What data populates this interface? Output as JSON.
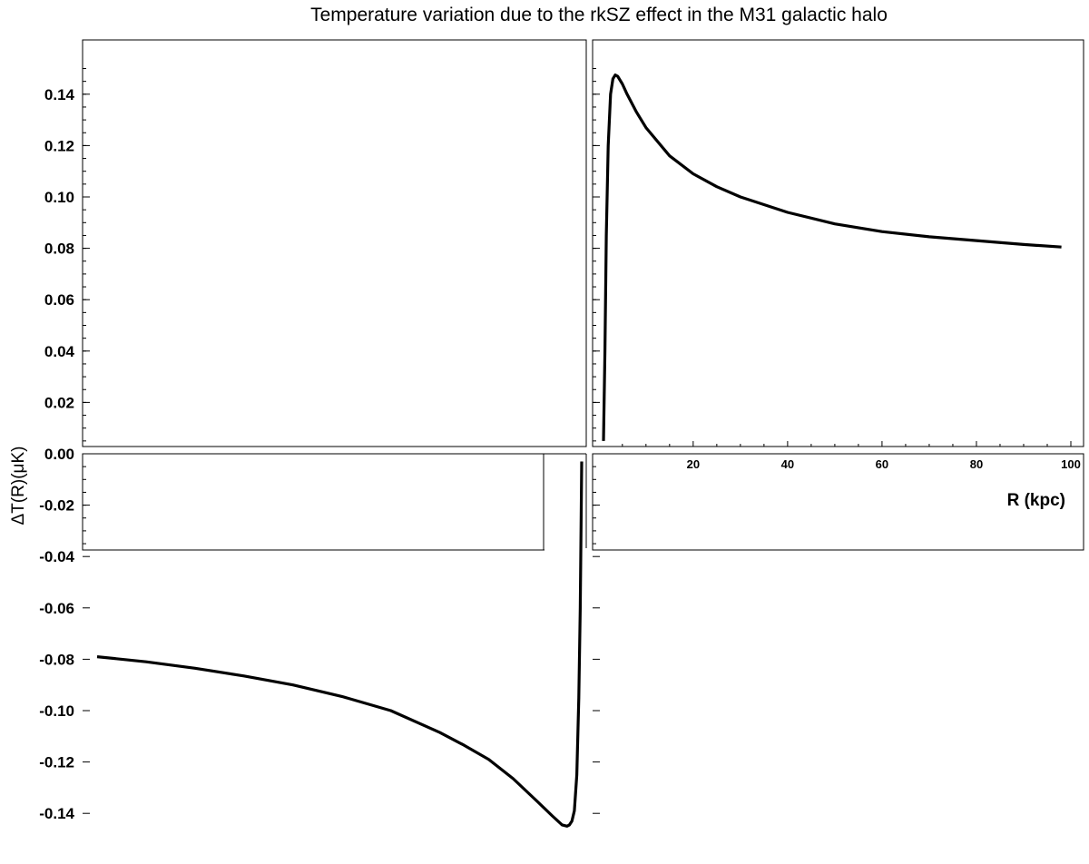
{
  "chart_data": {
    "type": "line",
    "title": "Temperature variation due to the rkSZ effect in the M31 galactic halo",
    "xlabel": "R (kpc)",
    "ylabel": "ΔT(R)(μK)",
    "grid": false,
    "xlim": [
      0,
      100
    ],
    "x_ticks": [
      20,
      40,
      60,
      80,
      100
    ],
    "y_ticks_upper": [
      "0.14",
      "0.12",
      "0.10",
      "0.08",
      "0.06",
      "0.04",
      "0.02",
      "0.00"
    ],
    "y_ticks_lower": [
      "-0.02",
      "-0.04",
      "-0.06",
      "-0.08",
      "-0.10",
      "-0.12",
      "-0.14"
    ],
    "panels": [
      {
        "name": "upper-right",
        "ylim": [
          0,
          0.15
        ],
        "x": [
          1,
          1.3,
          1.6,
          2,
          2.5,
          3,
          3.5,
          4,
          5,
          6,
          8,
          10,
          15,
          20,
          25,
          30,
          40,
          50,
          60,
          70,
          80,
          90,
          98
        ],
        "y": [
          0.005,
          0.04,
          0.085,
          0.12,
          0.14,
          0.146,
          0.1475,
          0.147,
          0.144,
          0.14,
          0.133,
          0.127,
          0.116,
          0.109,
          0.104,
          0.1,
          0.094,
          0.0895,
          0.0865,
          0.0845,
          0.083,
          0.0815,
          0.0805
        ]
      },
      {
        "name": "lower-left",
        "ylim": [
          -0.15,
          0
        ],
        "x": [
          100,
          90,
          80,
          70,
          60,
          50,
          40,
          30,
          25,
          20,
          15,
          10,
          7,
          5,
          4,
          3.5,
          3,
          2.5,
          2,
          1.6,
          1.3,
          1
        ],
        "y": [
          -0.079,
          -0.081,
          -0.0835,
          -0.0865,
          -0.09,
          -0.0945,
          -0.1,
          -0.1085,
          -0.1135,
          -0.119,
          -0.1265,
          -0.1355,
          -0.141,
          -0.1445,
          -0.145,
          -0.1445,
          -0.143,
          -0.139,
          -0.125,
          -0.095,
          -0.06,
          -0.003
        ]
      }
    ]
  }
}
